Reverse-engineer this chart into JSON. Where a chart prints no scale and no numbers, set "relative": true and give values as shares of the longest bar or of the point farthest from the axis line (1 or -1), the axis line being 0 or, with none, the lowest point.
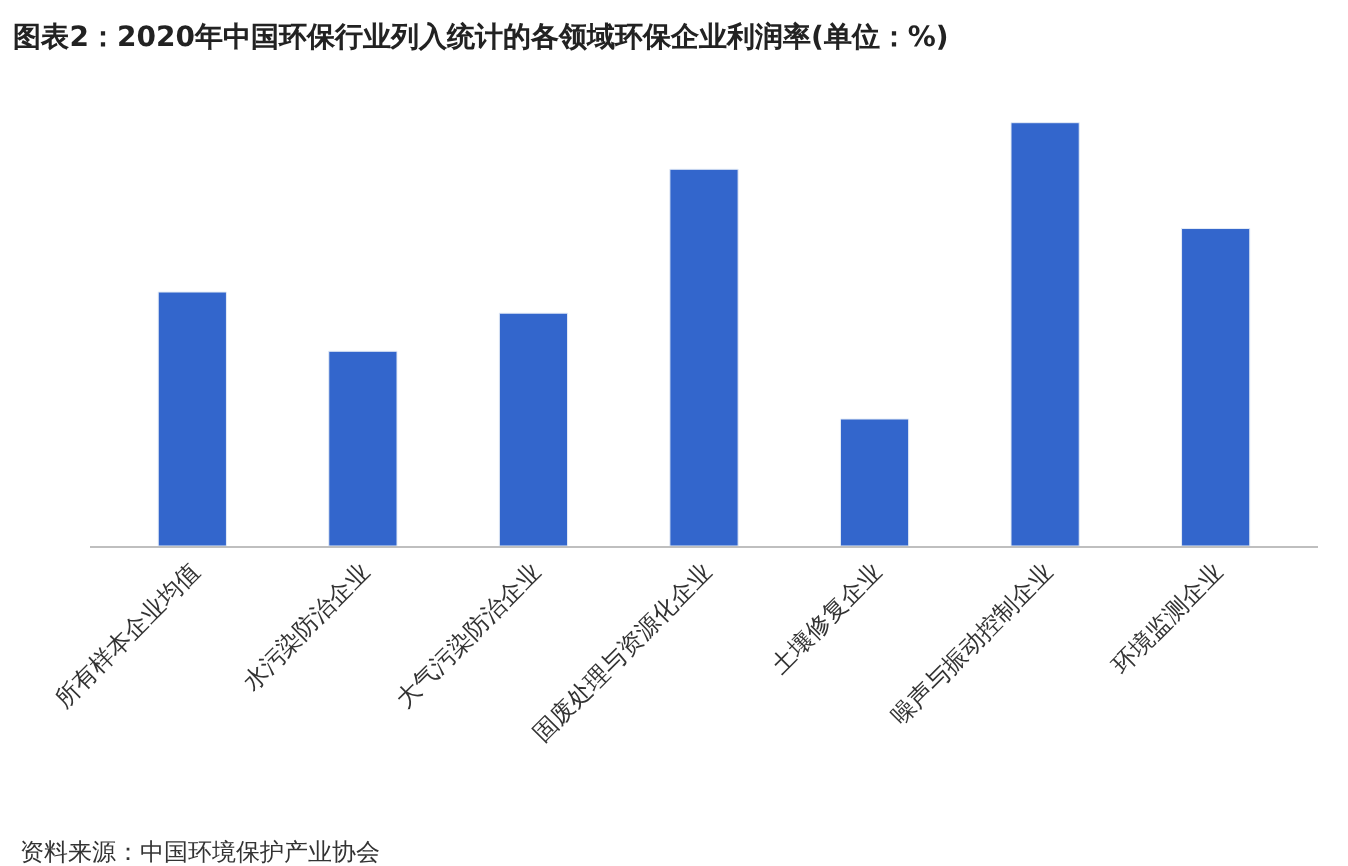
{
  "chart_data": {
    "type": "bar",
    "title": "图表2：2020年中国环保行业列入统计的各领域环保企业利润率(单位：%)",
    "categories": [
      "所有样本企业均值",
      "水污染防治企业",
      "大气污染防治企业",
      "固废处理与资源化企业",
      "土壤修复企业",
      "噪声与振动控制企业",
      "环境监测企业"
    ],
    "values": [
      0.6,
      0.46,
      0.55,
      0.89,
      0.3,
      1,
      0.75
    ],
    "color": "#3366cc",
    "relative": true,
    "annotations": [
      "资料来源：中国环境保护产业协会"
    ]
  }
}
